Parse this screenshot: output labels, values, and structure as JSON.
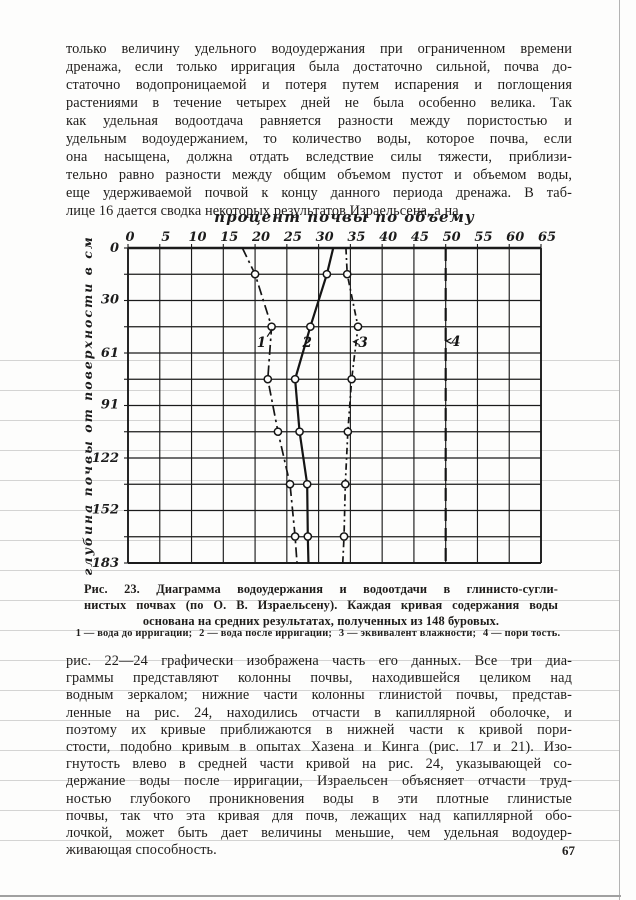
{
  "page": {
    "number": "67"
  },
  "paragraph_top": {
    "lines": [
      "только величину удельного водоудержания при ограниченном времени",
      "дренажа, если только ирригация была достаточно сильной, почва до-",
      "статочно водопроницаемой и потеря путем испарения и поглощения",
      "растениями в течение четырех дней не была особенно велика. Так",
      "как удельная водоотдача равняется разности между пористостью и",
      "удельным водоудержанием, то количество воды, которое почва, если",
      "она насыщена, должна отдать вследствие силы тяжести, приблизи-",
      "тельно равно разности между общим объемом пустот и объемом воды,",
      "еще удерживаемой почвой к концу данного периода дренажа. В таб-",
      "лице 16 дается сводка некоторых результатов Израельсена, а на"
    ]
  },
  "figure": {
    "caption_lines": [
      "Рис. 23. Диаграмма водоудержания и водоотдачи в глинисто-сугли-",
      "нистых почвах (по О. В. Израельсену). Каждая кривая содержания воды",
      "основана на средних результатах, полученных из 148 буровых."
    ],
    "legend_segments": [
      "1 — вода до ирригации;",
      "2 — вода после ирригации;",
      "3 — эквивалент влажности;",
      "4 — пори тость."
    ]
  },
  "paragraph_bottom": {
    "lines": [
      "рис. 22—24 графически изображена часть его данных. Все три диа-",
      "граммы представляют колонны почвы, находившейся целиком над",
      "водным зеркалом; нижние части колонны глинистой почвы, представ-",
      "ленные на рис. 24, находились отчасти в капиллярной оболочке, и",
      "поэтому их кривые приближаются в нижней части к кривой пори-",
      "стости, подобно кривым в опытах Хазена и Кинга (рис. 17 и 21). Изо-",
      "гнутость влево в средней части кривой на рис. 24, указывающей со-",
      "держание воды после ирригации, Израельсен объясняет отчасти труд-",
      "ностью глубокого проникновения воды в эти плотные глинистые",
      "почвы, так что эта кривая для почв, лежащих над капиллярной обо-",
      "лочкой, может быть дает величины меньшие, чем удельная водоудер-",
      "живающая способность."
    ]
  },
  "chart_data": {
    "type": "line",
    "title": "процент почвы по объему",
    "ylabel": "глубина почвы от поверхности в см",
    "xlabel": "",
    "xlim": [
      0,
      65
    ],
    "ylim_depth_cm": [
      0,
      183
    ],
    "x_ticks": [
      0,
      5,
      10,
      15,
      20,
      25,
      30,
      35,
      40,
      45,
      50,
      55,
      60,
      65
    ],
    "y_ticks": [
      0,
      30,
      61,
      91,
      122,
      152,
      183
    ],
    "grid": {
      "vertical_step": 5,
      "horizontal_rows": 12
    },
    "legend_position": "below caption",
    "series": [
      {
        "name": "1",
        "label": "вода до ирригации",
        "style": "dashdot",
        "depth_cm": [
          0,
          15.2,
          45.7,
          76.2,
          106.7,
          137.2,
          167.6,
          183
        ],
        "values": [
          18.0,
          20.0,
          22.6,
          22.0,
          23.6,
          25.5,
          26.3,
          26.6
        ],
        "marker_indices": [
          1,
          2,
          3,
          4,
          5,
          6
        ]
      },
      {
        "name": "2",
        "label": "вода после ирригации",
        "style": "solid",
        "depth_cm": [
          0,
          15.2,
          45.7,
          76.2,
          106.7,
          137.2,
          167.6,
          183
        ],
        "values": [
          32.3,
          31.3,
          28.7,
          26.3,
          27.0,
          28.2,
          28.3,
          28.4
        ],
        "marker_indices": [
          1,
          2,
          3,
          4,
          5,
          6
        ]
      },
      {
        "name": "3",
        "label": "эквивалент влажности",
        "style": "dashdot-fine",
        "depth_cm": [
          0,
          15.2,
          45.7,
          76.2,
          106.7,
          137.2,
          167.6,
          183
        ],
        "values": [
          34.3,
          34.5,
          36.2,
          35.2,
          34.6,
          34.2,
          34.0,
          33.8
        ],
        "marker_indices": [
          1,
          2,
          3,
          4,
          5,
          6
        ]
      },
      {
        "name": "4",
        "label": "пористость",
        "style": "longdash",
        "depth_cm": [
          0,
          183
        ],
        "values": [
          50,
          50
        ],
        "marker_indices": []
      }
    ],
    "curve_labels": [
      {
        "text": "1",
        "value": 21.0,
        "depth_cm": 54.5,
        "leader": [
          [
            21.9,
            51.5
          ],
          [
            22.7,
            47.0
          ]
        ]
      },
      {
        "text": "2",
        "value": 28.2,
        "depth_cm": 54.5
      },
      {
        "text": "3",
        "value": 37.0,
        "depth_cm": 54.5,
        "leader": [
          [
            36.3,
            53.0
          ],
          [
            35.5,
            54.5
          ],
          [
            36.3,
            56.0
          ]
        ]
      },
      {
        "text": "4",
        "value": 51.6,
        "depth_cm": 54.0,
        "leader": [
          [
            50.9,
            52.5
          ],
          [
            50.1,
            54.0
          ],
          [
            50.9,
            55.5
          ]
        ]
      }
    ]
  }
}
